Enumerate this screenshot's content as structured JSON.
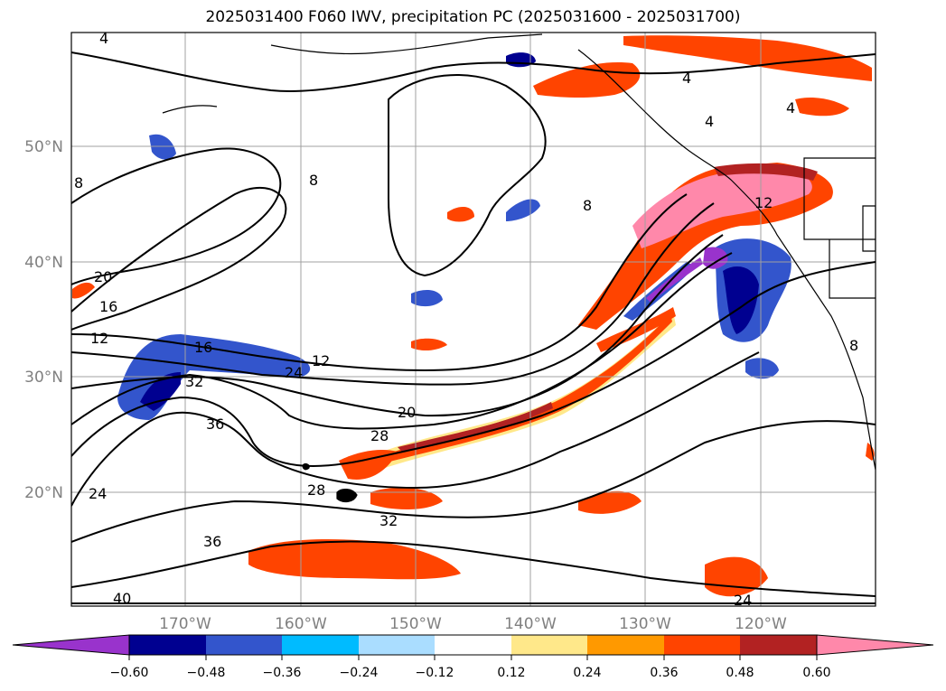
{
  "title": "2025031400 F060 IWV, precipitation PC (2025031600 - 2025031700)",
  "lat_labels": [
    "50°N",
    "40°N",
    "30°N",
    "20°N"
  ],
  "lon_labels": [
    "170°W",
    "160°W",
    "150°W",
    "140°W",
    "130°W",
    "120°W"
  ],
  "contour_labels": [
    "4",
    "4",
    "4",
    "4",
    "8",
    "8",
    "8",
    "8",
    "12",
    "12",
    "12",
    "16",
    "16",
    "20",
    "20",
    "24",
    "24",
    "24",
    "28",
    "28",
    "32",
    "32",
    "36",
    "36",
    "40"
  ],
  "colorbar": {
    "tick_labels": [
      "−0.60",
      "−0.48",
      "−0.36",
      "−0.24",
      "−0.12",
      "0.12",
      "0.24",
      "0.36",
      "0.48",
      "0.60"
    ],
    "colors": [
      "#9933cc",
      "#000090",
      "#3355cc",
      "#00bbff",
      "#aaddff",
      "#ffffff",
      "#ffe88a",
      "#ff9900",
      "#ff4400",
      "#b22222",
      "#ff88aa"
    ]
  },
  "colors": {
    "land_coast": "#000000",
    "grid": "#a0a0a0",
    "contour": "#000000"
  }
}
